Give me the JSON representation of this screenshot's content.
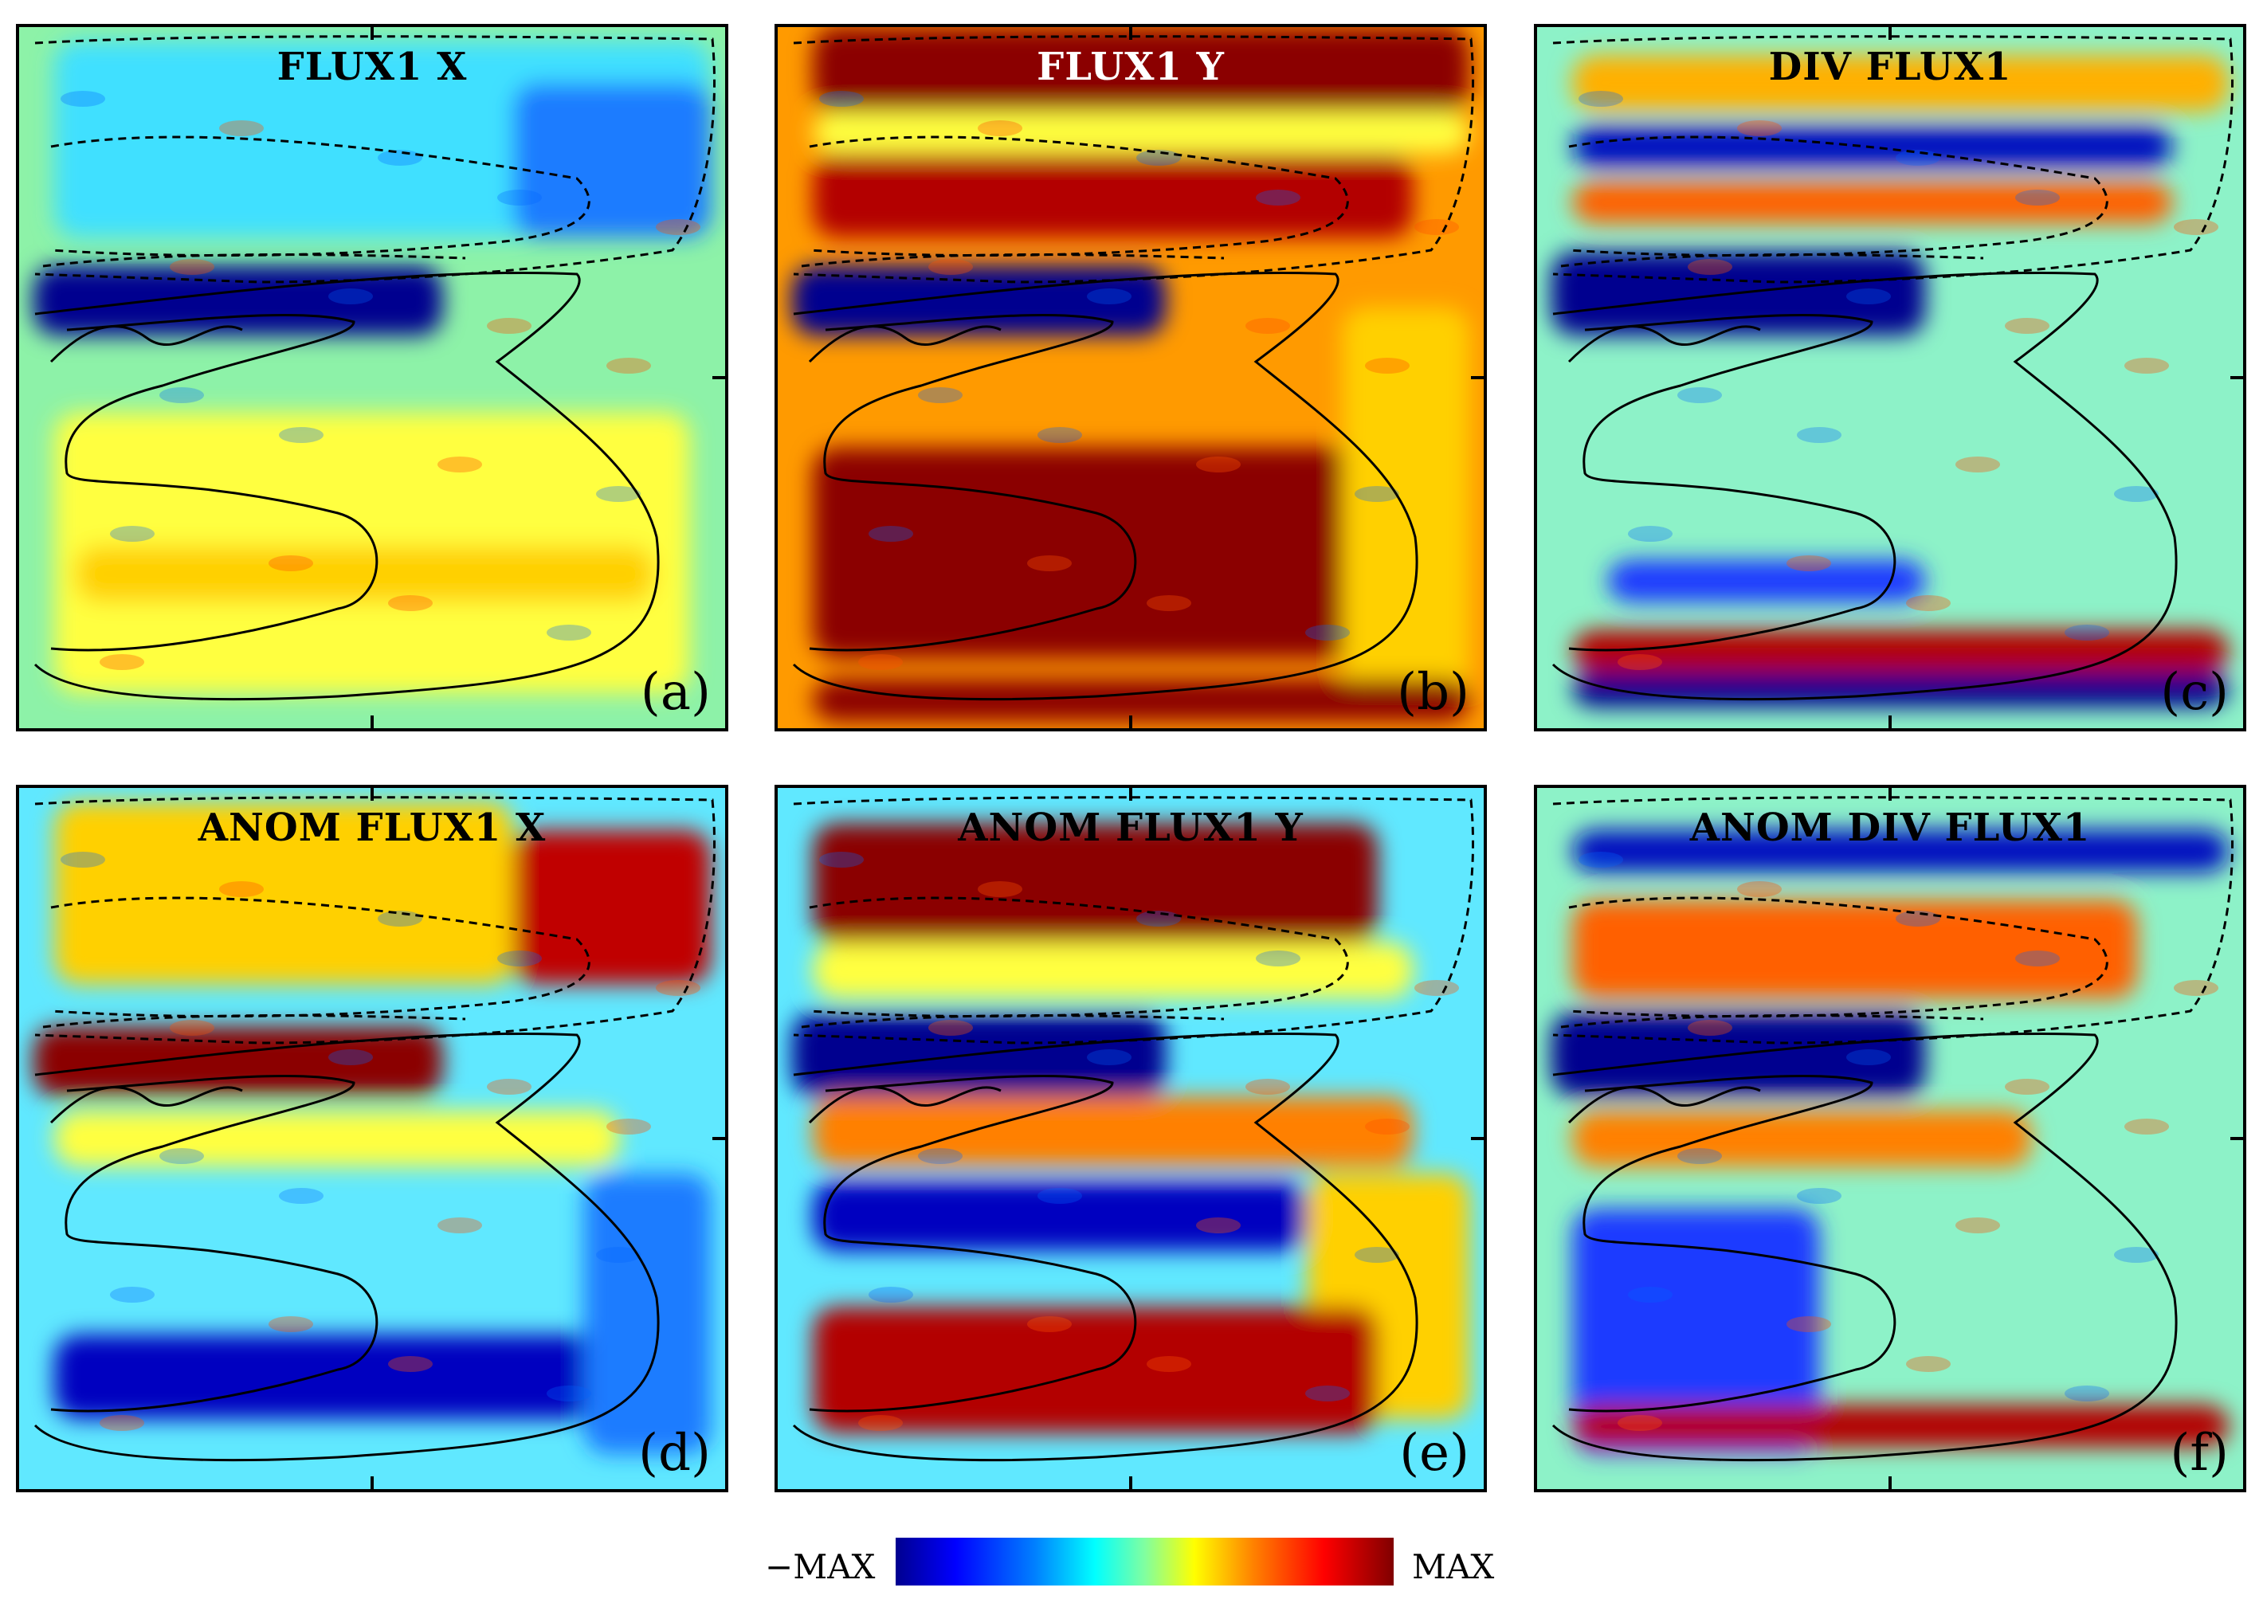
{
  "panels": [
    {
      "id": "a",
      "title": "FLUX1 X",
      "label": "(a)",
      "title_color": "black",
      "base": "#8df2a8",
      "blobs": [
        {
          "c": "#ffff40",
          "shape": [
            [
              0.05,
              0.55
            ],
            [
              0.95,
              0.95
            ]
          ]
        },
        {
          "c": "#40e0ff",
          "shape": [
            [
              0.05,
              0.02
            ],
            [
              0.98,
              0.3
            ]
          ]
        },
        {
          "c": "#00008f",
          "shape": [
            [
              0.02,
              0.34
            ],
            [
              0.6,
              0.44
            ]
          ]
        },
        {
          "c": "#1a7bff",
          "shape": [
            [
              0.7,
              0.08
            ],
            [
              0.98,
              0.3
            ]
          ]
        },
        {
          "c": "#ffd000",
          "shape": [
            [
              0.08,
              0.74
            ],
            [
              0.9,
              0.82
            ]
          ]
        }
      ]
    },
    {
      "id": "b",
      "title": "FLUX1 Y",
      "label": "(b)",
      "title_color": "white",
      "base": "#ff9a00",
      "blobs": [
        {
          "c": "#8b0000",
          "shape": [
            [
              0.05,
              0.0
            ],
            [
              0.98,
              0.12
            ]
          ]
        },
        {
          "c": "#b30000",
          "shape": [
            [
              0.05,
              0.18
            ],
            [
              0.9,
              0.3
            ]
          ]
        },
        {
          "c": "#ffff40",
          "shape": [
            [
              0.05,
              0.12
            ],
            [
              0.98,
              0.18
            ]
          ]
        },
        {
          "c": "#00008f",
          "shape": [
            [
              0.02,
              0.34
            ],
            [
              0.55,
              0.44
            ]
          ]
        },
        {
          "c": "#8b0000",
          "shape": [
            [
              0.05,
              0.6
            ],
            [
              0.85,
              0.9
            ]
          ]
        },
        {
          "c": "#ffd000",
          "shape": [
            [
              0.8,
              0.4
            ],
            [
              0.98,
              0.95
            ]
          ]
        },
        {
          "c": "#8b0000",
          "shape": [
            [
              0.05,
              0.93
            ],
            [
              0.98,
              0.99
            ]
          ]
        }
      ]
    },
    {
      "id": "c",
      "title": "DIV FLUX1",
      "label": "(c)",
      "title_color": "black",
      "base": "#8df2c8",
      "blobs": [
        {
          "c": "#ffb000",
          "shape": [
            [
              0.05,
              0.04
            ],
            [
              0.98,
              0.12
            ]
          ]
        },
        {
          "c": "#0010c0",
          "shape": [
            [
              0.05,
              0.14
            ],
            [
              0.9,
              0.2
            ]
          ]
        },
        {
          "c": "#ff6000",
          "shape": [
            [
              0.05,
              0.22
            ],
            [
              0.9,
              0.28
            ]
          ]
        },
        {
          "c": "#00008f",
          "shape": [
            [
              0.02,
              0.32
            ],
            [
              0.55,
              0.44
            ]
          ]
        },
        {
          "c": "#1a3bff",
          "shape": [
            [
              0.1,
              0.76
            ],
            [
              0.55,
              0.82
            ]
          ]
        },
        {
          "c": "#b30000",
          "shape": [
            [
              0.05,
              0.86
            ],
            [
              0.98,
              0.92
            ]
          ]
        },
        {
          "c": "#00008f",
          "shape": [
            [
              0.05,
              0.92
            ],
            [
              0.98,
              0.97
            ]
          ]
        }
      ]
    },
    {
      "id": "d",
      "title": "ANOM FLUX1 X",
      "label": "(d)",
      "title_color": "black",
      "base": "#60e8ff",
      "blobs": [
        {
          "c": "#ffd000",
          "shape": [
            [
              0.05,
              0.02
            ],
            [
              0.7,
              0.28
            ]
          ]
        },
        {
          "c": "#c00000",
          "shape": [
            [
              0.7,
              0.06
            ],
            [
              0.98,
              0.28
            ]
          ]
        },
        {
          "c": "#8b0000",
          "shape": [
            [
              0.02,
              0.34
            ],
            [
              0.6,
              0.44
            ]
          ]
        },
        {
          "c": "#ffff40",
          "shape": [
            [
              0.05,
              0.46
            ],
            [
              0.85,
              0.54
            ]
          ]
        },
        {
          "c": "#0000c0",
          "shape": [
            [
              0.05,
              0.78
            ],
            [
              0.85,
              0.9
            ]
          ]
        },
        {
          "c": "#1a7bff",
          "shape": [
            [
              0.8,
              0.55
            ],
            [
              0.98,
              0.95
            ]
          ]
        }
      ]
    },
    {
      "id": "e",
      "title": "ANOM FLUX1 Y",
      "label": "(e)",
      "title_color": "black",
      "base": "#60e8ff",
      "blobs": [
        {
          "c": "#8b0000",
          "shape": [
            [
              0.05,
              0.05
            ],
            [
              0.85,
              0.22
            ]
          ]
        },
        {
          "c": "#ffff40",
          "shape": [
            [
              0.05,
              0.22
            ],
            [
              0.9,
              0.3
            ]
          ]
        },
        {
          "c": "#00008f",
          "shape": [
            [
              0.02,
              0.32
            ],
            [
              0.55,
              0.44
            ]
          ]
        },
        {
          "c": "#ff8000",
          "shape": [
            [
              0.05,
              0.44
            ],
            [
              0.9,
              0.54
            ]
          ]
        },
        {
          "c": "#0000c0",
          "shape": [
            [
              0.05,
              0.56
            ],
            [
              0.75,
              0.66
            ]
          ]
        },
        {
          "c": "#ffd000",
          "shape": [
            [
              0.75,
              0.55
            ],
            [
              0.98,
              0.9
            ]
          ]
        },
        {
          "c": "#b30000",
          "shape": [
            [
              0.05,
              0.74
            ],
            [
              0.85,
              0.92
            ]
          ]
        }
      ]
    },
    {
      "id": "f",
      "title": "ANOM DIV FLUX1",
      "label": "(f)",
      "title_color": "black",
      "base": "#8df2c8",
      "blobs": [
        {
          "c": "#0010c0",
          "shape": [
            [
              0.05,
              0.06
            ],
            [
              0.98,
              0.12
            ]
          ]
        },
        {
          "c": "#ff6000",
          "shape": [
            [
              0.05,
              0.16
            ],
            [
              0.85,
              0.3
            ]
          ]
        },
        {
          "c": "#00008f",
          "shape": [
            [
              0.02,
              0.32
            ],
            [
              0.55,
              0.44
            ]
          ]
        },
        {
          "c": "#ff8000",
          "shape": [
            [
              0.05,
              0.46
            ],
            [
              0.7,
              0.54
            ]
          ]
        },
        {
          "c": "#1a3bff",
          "shape": [
            [
              0.05,
              0.6
            ],
            [
              0.4,
              0.95
            ]
          ]
        },
        {
          "c": "#b30000",
          "shape": [
            [
              0.05,
              0.88
            ],
            [
              0.98,
              0.94
            ]
          ]
        }
      ]
    }
  ],
  "colorbar": {
    "min_label": "−MAX",
    "max_label": "MAX"
  }
}
